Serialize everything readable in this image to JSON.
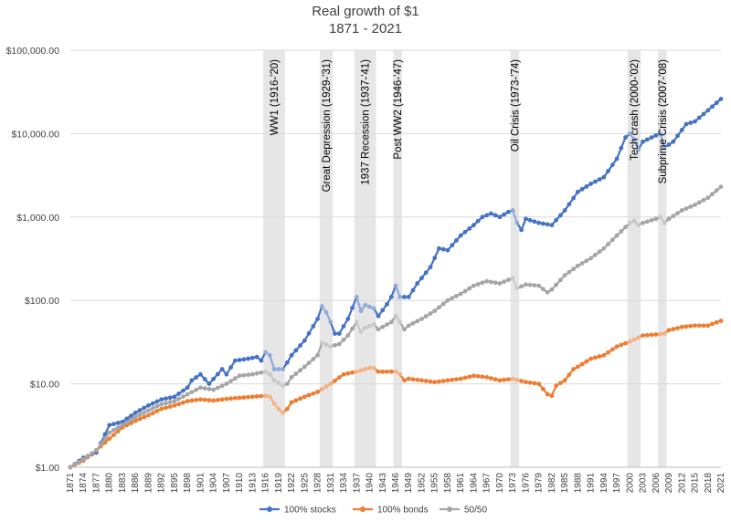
{
  "chart_data": {
    "type": "line",
    "title": "Real growth of $1",
    "subtitle": "1871 - 2021",
    "yscale": "log",
    "ylim": [
      1,
      100000
    ],
    "xlim": [
      1871,
      2021
    ],
    "grid": true,
    "legend_position": "bottom",
    "y_ticks": [
      {
        "value": 1,
        "label": "$1.00"
      },
      {
        "value": 10,
        "label": "$10.00"
      },
      {
        "value": 100,
        "label": "$100.00"
      },
      {
        "value": 1000,
        "label": "$1,000.00"
      },
      {
        "value": 10000,
        "label": "$10,000.00"
      },
      {
        "value": 100000,
        "label": "$100,000.00"
      }
    ],
    "x_ticks": [
      1871,
      1874,
      1877,
      1880,
      1883,
      1886,
      1889,
      1892,
      1895,
      1898,
      1901,
      1904,
      1907,
      1910,
      1913,
      1916,
      1919,
      1922,
      1925,
      1928,
      1931,
      1934,
      1937,
      1940,
      1943,
      1946,
      1949,
      1952,
      1955,
      1958,
      1961,
      1964,
      1967,
      1970,
      1973,
      1976,
      1979,
      1982,
      1985,
      1988,
      1991,
      1994,
      1997,
      2000,
      2003,
      2006,
      2009,
      2012,
      2015,
      2018,
      2021
    ],
    "bands": [
      {
        "start": 1916,
        "end": 1920,
        "label": "WW1 (1916-'20)"
      },
      {
        "start": 1929,
        "end": 1931,
        "label": "Great Depression (1929-'31)"
      },
      {
        "start": 1937,
        "end": 1941,
        "label": "1937 Recession (1937-'41)"
      },
      {
        "start": 1946,
        "end": 1947,
        "label": "Post WW2 (1946-'47)"
      },
      {
        "start": 1973,
        "end": 1974,
        "label": "Oil Crisis (1973-'74)"
      },
      {
        "start": 2000,
        "end": 2002,
        "label": "Tech crash (2000-'02)"
      },
      {
        "start": 2007,
        "end": 2008,
        "label": "Subprime Crisis (2007-'08)"
      }
    ],
    "series": [
      {
        "name": "100% stocks",
        "color": "#4472c4",
        "highlight_color": "#8faadc",
        "keypoints": [
          [
            1871,
            1.0
          ],
          [
            1874,
            1.3
          ],
          [
            1877,
            1.5
          ],
          [
            1880,
            3.2
          ],
          [
            1883,
            3.5
          ],
          [
            1886,
            4.5
          ],
          [
            1889,
            5.5
          ],
          [
            1892,
            6.5
          ],
          [
            1895,
            7
          ],
          [
            1898,
            9
          ],
          [
            1899,
            11
          ],
          [
            1901,
            13
          ],
          [
            1903,
            10
          ],
          [
            1906,
            15
          ],
          [
            1907,
            13
          ],
          [
            1909,
            19
          ],
          [
            1912,
            20
          ],
          [
            1914,
            21
          ],
          [
            1915,
            19
          ],
          [
            1916,
            24
          ],
          [
            1917,
            22
          ],
          [
            1918,
            15
          ],
          [
            1920,
            15
          ],
          [
            1921,
            18
          ],
          [
            1922,
            22
          ],
          [
            1925,
            33
          ],
          [
            1928,
            60
          ],
          [
            1929,
            85
          ],
          [
            1930,
            72
          ],
          [
            1931,
            55
          ],
          [
            1932,
            40
          ],
          [
            1933,
            40
          ],
          [
            1935,
            60
          ],
          [
            1937,
            110
          ],
          [
            1938,
            75
          ],
          [
            1939,
            88
          ],
          [
            1941,
            80
          ],
          [
            1942,
            65
          ],
          [
            1944,
            90
          ],
          [
            1945,
            110
          ],
          [
            1946,
            150
          ],
          [
            1947,
            110
          ],
          [
            1949,
            110
          ],
          [
            1951,
            160
          ],
          [
            1954,
            250
          ],
          [
            1956,
            420
          ],
          [
            1958,
            400
          ],
          [
            1961,
            600
          ],
          [
            1964,
            800
          ],
          [
            1966,
            1000
          ],
          [
            1968,
            1100
          ],
          [
            1970,
            1000
          ],
          [
            1972,
            1150
          ],
          [
            1973,
            1200
          ],
          [
            1974,
            850
          ],
          [
            1975,
            700
          ],
          [
            1976,
            950
          ],
          [
            1979,
            850
          ],
          [
            1982,
            800
          ],
          [
            1985,
            1200
          ],
          [
            1988,
            2000
          ],
          [
            1991,
            2500
          ],
          [
            1994,
            3000
          ],
          [
            1997,
            5000
          ],
          [
            1999,
            9000
          ],
          [
            2000,
            10000
          ],
          [
            2001,
            8500
          ],
          [
            2002,
            6500
          ],
          [
            2003,
            8000
          ],
          [
            2006,
            9500
          ],
          [
            2007,
            10000
          ],
          [
            2008,
            6800
          ],
          [
            2010,
            8000
          ],
          [
            2013,
            13000
          ],
          [
            2015,
            14000
          ],
          [
            2018,
            19000
          ],
          [
            2021,
            26000
          ]
        ]
      },
      {
        "name": "100% bonds",
        "color": "#ed7d31",
        "highlight_color": "#f4b183",
        "keypoints": [
          [
            1871,
            1.0
          ],
          [
            1874,
            1.2
          ],
          [
            1877,
            1.6
          ],
          [
            1880,
            2.2
          ],
          [
            1883,
            3.0
          ],
          [
            1886,
            3.6
          ],
          [
            1889,
            4.2
          ],
          [
            1892,
            5.0
          ],
          [
            1895,
            5.5
          ],
          [
            1898,
            6.2
          ],
          [
            1901,
            6.5
          ],
          [
            1904,
            6.3
          ],
          [
            1907,
            6.6
          ],
          [
            1910,
            6.8
          ],
          [
            1913,
            7.0
          ],
          [
            1916,
            7.2
          ],
          [
            1917,
            7.0
          ],
          [
            1918,
            5.8
          ],
          [
            1919,
            5.0
          ],
          [
            1920,
            4.5
          ],
          [
            1921,
            5.0
          ],
          [
            1922,
            6.0
          ],
          [
            1925,
            7.0
          ],
          [
            1928,
            8.0
          ],
          [
            1931,
            10
          ],
          [
            1934,
            13
          ],
          [
            1937,
            14
          ],
          [
            1940,
            15.5
          ],
          [
            1941,
            15.5
          ],
          [
            1942,
            14
          ],
          [
            1946,
            14
          ],
          [
            1947,
            13
          ],
          [
            1948,
            11
          ],
          [
            1949,
            11.5
          ],
          [
            1952,
            11
          ],
          [
            1955,
            10.5
          ],
          [
            1958,
            11
          ],
          [
            1961,
            11.5
          ],
          [
            1964,
            12.5
          ],
          [
            1967,
            12
          ],
          [
            1970,
            11
          ],
          [
            1973,
            11.5
          ],
          [
            1976,
            10.5
          ],
          [
            1979,
            10
          ],
          [
            1981,
            7.5
          ],
          [
            1982,
            7.2
          ],
          [
            1983,
            9.5
          ],
          [
            1985,
            11
          ],
          [
            1987,
            15
          ],
          [
            1988,
            16
          ],
          [
            1991,
            20
          ],
          [
            1994,
            22
          ],
          [
            1997,
            28
          ],
          [
            2000,
            32
          ],
          [
            2003,
            38
          ],
          [
            2006,
            39
          ],
          [
            2008,
            40
          ],
          [
            2009,
            44
          ],
          [
            2012,
            48
          ],
          [
            2015,
            50
          ],
          [
            2018,
            50
          ],
          [
            2021,
            57
          ]
        ]
      },
      {
        "name": "50/50",
        "color": "#a5a5a5",
        "highlight_color": "#c9c9c9",
        "keypoints": [
          [
            1871,
            1.0
          ],
          [
            1874,
            1.25
          ],
          [
            1877,
            1.6
          ],
          [
            1880,
            2.6
          ],
          [
            1883,
            3.2
          ],
          [
            1886,
            4.0
          ],
          [
            1889,
            4.8
          ],
          [
            1892,
            5.7
          ],
          [
            1895,
            6.2
          ],
          [
            1898,
            7.5
          ],
          [
            1901,
            9.0
          ],
          [
            1904,
            8.5
          ],
          [
            1907,
            10
          ],
          [
            1910,
            12.5
          ],
          [
            1913,
            13
          ],
          [
            1916,
            14
          ],
          [
            1917,
            13
          ],
          [
            1918,
            11
          ],
          [
            1920,
            9.5
          ],
          [
            1921,
            10
          ],
          [
            1922,
            12
          ],
          [
            1925,
            16
          ],
          [
            1928,
            22
          ],
          [
            1929,
            31
          ],
          [
            1931,
            28
          ],
          [
            1933,
            30
          ],
          [
            1935,
            38
          ],
          [
            1937,
            55
          ],
          [
            1938,
            42
          ],
          [
            1939,
            47
          ],
          [
            1941,
            52
          ],
          [
            1942,
            45
          ],
          [
            1945,
            55
          ],
          [
            1946,
            65
          ],
          [
            1947,
            55
          ],
          [
            1948,
            45
          ],
          [
            1949,
            50
          ],
          [
            1952,
            60
          ],
          [
            1955,
            75
          ],
          [
            1958,
            100
          ],
          [
            1961,
            120
          ],
          [
            1964,
            150
          ],
          [
            1967,
            170
          ],
          [
            1970,
            160
          ],
          [
            1973,
            185
          ],
          [
            1974,
            140
          ],
          [
            1976,
            155
          ],
          [
            1979,
            150
          ],
          [
            1981,
            125
          ],
          [
            1982,
            135
          ],
          [
            1985,
            200
          ],
          [
            1988,
            260
          ],
          [
            1991,
            320
          ],
          [
            1994,
            420
          ],
          [
            1997,
            600
          ],
          [
            2000,
            850
          ],
          [
            2001,
            900
          ],
          [
            2002,
            800
          ],
          [
            2003,
            850
          ],
          [
            2006,
            950
          ],
          [
            2007,
            1000
          ],
          [
            2008,
            850
          ],
          [
            2009,
            950
          ],
          [
            2012,
            1200
          ],
          [
            2015,
            1400
          ],
          [
            2018,
            1700
          ],
          [
            2021,
            2300
          ]
        ]
      }
    ]
  }
}
